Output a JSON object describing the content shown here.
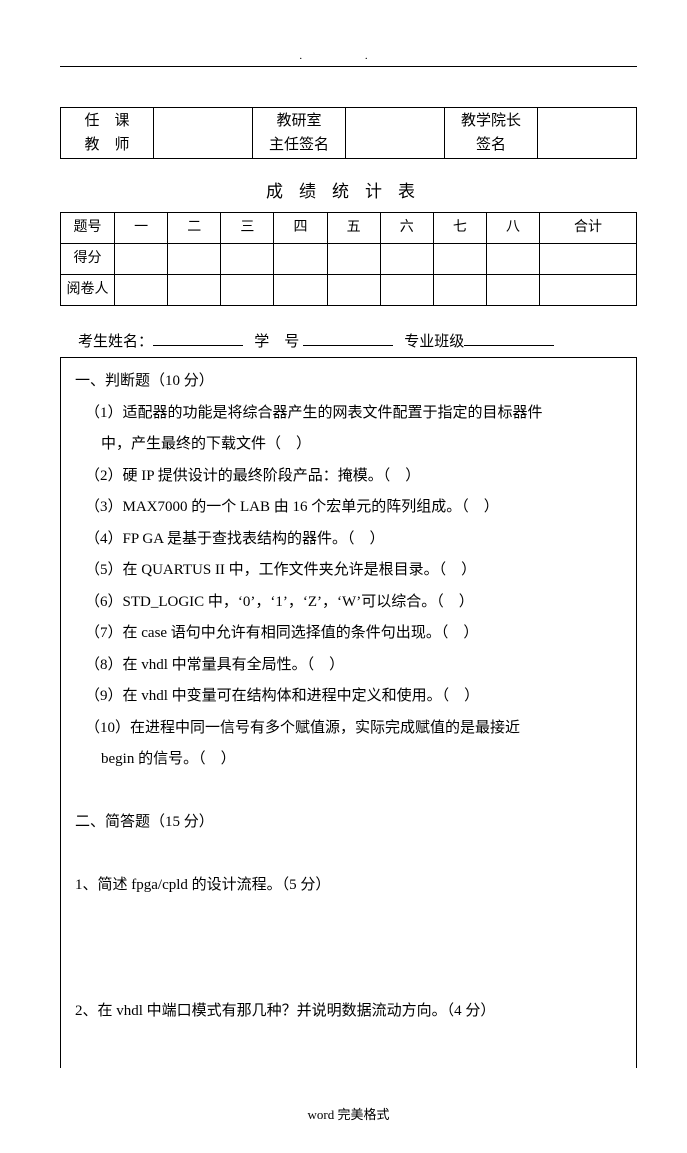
{
  "header_dots": ". .",
  "sig_table": {
    "c1a": "任　课",
    "c1b": "教　师",
    "c2a": "教研室",
    "c2b": "主任签名",
    "c3a": "教学院长",
    "c3b": "签名"
  },
  "stat_title": "成绩统计表",
  "score": {
    "r1": "题号",
    "r2": "得分",
    "r3": "阅卷人",
    "cols": [
      "一",
      "二",
      "三",
      "四",
      "五",
      "六",
      "七",
      "八",
      "合计"
    ]
  },
  "student": {
    "name_label": "考生姓名：",
    "xue": "学",
    "hao": "号",
    "class_label": "专业班级"
  },
  "section1": {
    "title": "一、判断题（10 分）",
    "items": [
      "（1）适配器的功能是将综合器产生的网表文件配置于指定的目标器件",
      "中，产生最终的下载文件（　）",
      "（2）硬 IP 提供设计的最终阶段产品：掩模。（　）",
      "（3）MAX7000 的一个 LAB 由 16 个宏单元的阵列组成。（　）",
      "（4）FP GA 是基于查找表结构的器件。（　）",
      "（5）在 QUARTUS II 中，工作文件夹允许是根目录。（　）",
      "（6）STD_LOGIC 中，‘0’，‘1’，‘Z’，‘W’可以综合。（　）",
      "（7）在 case 语句中允许有相同选择值的条件句出现。（　）",
      "（8）在 vhdl 中常量具有全局性。（　）",
      "（9）在 vhdl 中变量可在结构体和进程中定义和使用。（　）",
      "（10）在进程中同一信号有多个赋值源，实际完成赋值的是最接近",
      "begin 的信号。（　）"
    ]
  },
  "section2": {
    "title": "二、简答题（15 分）",
    "q1": "1、简述 fpga/cpld 的设计流程。（5 分）",
    "q2": "2、在 vhdl 中端口模式有那几种？并说明数据流动方向。（4 分）"
  },
  "footer": "word 完美格式"
}
